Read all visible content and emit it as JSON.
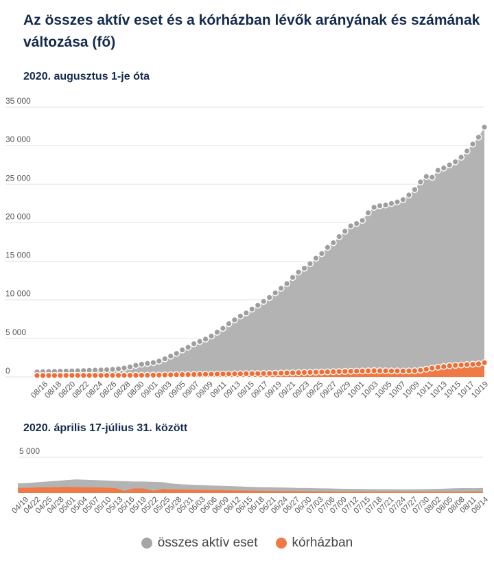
{
  "title": "Az összes aktív eset és a kórházban lévők arányának és számának változása (fő)",
  "legend": [
    {
      "label": "összes aktív eset",
      "color": "#a6a6a6"
    },
    {
      "label": "kórházban",
      "color": "#f07a45"
    }
  ],
  "chart_data": [
    {
      "type": "area",
      "title": "2020. augusztus 1-je óta",
      "x_labels": [
        "08/16",
        "08/18",
        "08/20",
        "08/22",
        "08/24",
        "08/26",
        "08/28",
        "08/30",
        "09/01",
        "09/03",
        "09/05",
        "09/07",
        "09/09",
        "09/11",
        "09/13",
        "09/15",
        "09/17",
        "09/19",
        "09/21",
        "09/23",
        "09/25",
        "09/27",
        "09/29",
        "10/01",
        "10/03",
        "10/05",
        "10/07",
        "10/09",
        "10/11",
        "10/13",
        "10/15",
        "10/17",
        "10/19"
      ],
      "y_ticks": [
        "0",
        "5 000",
        "10 000",
        "15 000",
        "20 000",
        "25 000",
        "30 000",
        "35 000"
      ],
      "ylim": [
        0,
        35000
      ],
      "grid": true,
      "series": [
        {
          "name": "összes aktív eset",
          "color": "#b3b3b3",
          "values": [
            650,
            680,
            700,
            720,
            740,
            760,
            780,
            800,
            830,
            860,
            880,
            900,
            930,
            980,
            1050,
            1150,
            1300,
            1500,
            1650,
            1750,
            1850,
            2050,
            2350,
            2700,
            3050,
            3500,
            3850,
            4300,
            4600,
            4900,
            5300,
            5800,
            6300,
            6900,
            7400,
            7900,
            8300,
            8800,
            9300,
            9800,
            10300,
            10900,
            11500,
            12100,
            12900,
            13600,
            14100,
            14700,
            15400,
            16000,
            16800,
            17400,
            18200,
            18900,
            19600,
            19900,
            20300,
            21300,
            22000,
            22200,
            22300,
            22500,
            22700,
            23000,
            23600,
            24300,
            25300,
            26000,
            25900,
            26800,
            27100,
            27500,
            27900,
            28500,
            29300,
            30200,
            31100,
            32400
          ]
        },
        {
          "name": "kórházban",
          "color": "#f07a45",
          "values": [
            190,
            190,
            195,
            195,
            195,
            200,
            200,
            200,
            200,
            200,
            205,
            205,
            205,
            210,
            210,
            215,
            215,
            220,
            225,
            230,
            240,
            250,
            260,
            280,
            290,
            300,
            310,
            320,
            340,
            350,
            360,
            370,
            380,
            390,
            400,
            410,
            420,
            430,
            440,
            450,
            460,
            480,
            500,
            520,
            540,
            560,
            580,
            600,
            620,
            640,
            660,
            680,
            700,
            720,
            740,
            760,
            770,
            790,
            810,
            800,
            790,
            780,
            780,
            770,
            780,
            800,
            880,
            1000,
            1150,
            1250,
            1350,
            1450,
            1500,
            1550,
            1600,
            1650,
            1700,
            1850
          ]
        }
      ]
    },
    {
      "type": "area",
      "title": "2020. április 17-július 31. között",
      "x_labels": [
        "04/19",
        "04/22",
        "04/25",
        "04/28",
        "05/01",
        "05/04",
        "05/07",
        "05/10",
        "05/13",
        "05/16",
        "05/19",
        "05/22",
        "05/25",
        "05/28",
        "05/31",
        "06/03",
        "06/06",
        "06/09",
        "06/12",
        "06/15",
        "06/18",
        "06/21",
        "06/24",
        "06/27",
        "06/30",
        "07/03",
        "07/06",
        "07/09",
        "07/12",
        "07/15",
        "07/18",
        "07/21",
        "07/24",
        "07/27",
        "07/30",
        "08/02",
        "08/05",
        "08/08",
        "08/11",
        "08/14"
      ],
      "y_ticks": [
        "5 000"
      ],
      "ylim": [
        0,
        5000
      ],
      "grid": true,
      "series": [
        {
          "name": "összes aktív eset",
          "color": "#b3b3b3",
          "values": [
            1350,
            1400,
            1500,
            1600,
            1700,
            1800,
            1900,
            1850,
            1800,
            1750,
            1700,
            1650,
            1600,
            1600,
            1550,
            1500,
            1300,
            1200,
            1150,
            1100,
            1050,
            1000,
            950,
            900,
            850,
            820,
            800,
            780,
            750,
            700,
            680,
            650,
            640,
            600,
            580,
            560,
            540,
            530,
            520,
            520,
            510,
            520,
            530,
            560,
            600,
            650,
            680,
            660,
            700
          ]
        },
        {
          "name": "kórházban",
          "color": "#f07a45",
          "values": [
            700,
            720,
            780,
            800,
            820,
            850,
            830,
            800,
            780,
            750,
            700,
            300,
            650,
            620,
            300,
            550,
            500,
            480,
            450,
            430,
            400,
            380,
            360,
            340,
            320,
            300,
            280,
            260,
            240,
            220,
            200,
            190,
            180,
            170,
            170,
            160,
            160,
            150,
            150,
            150,
            150,
            150,
            150,
            150,
            160,
            160,
            170,
            175,
            180
          ]
        }
      ]
    }
  ]
}
